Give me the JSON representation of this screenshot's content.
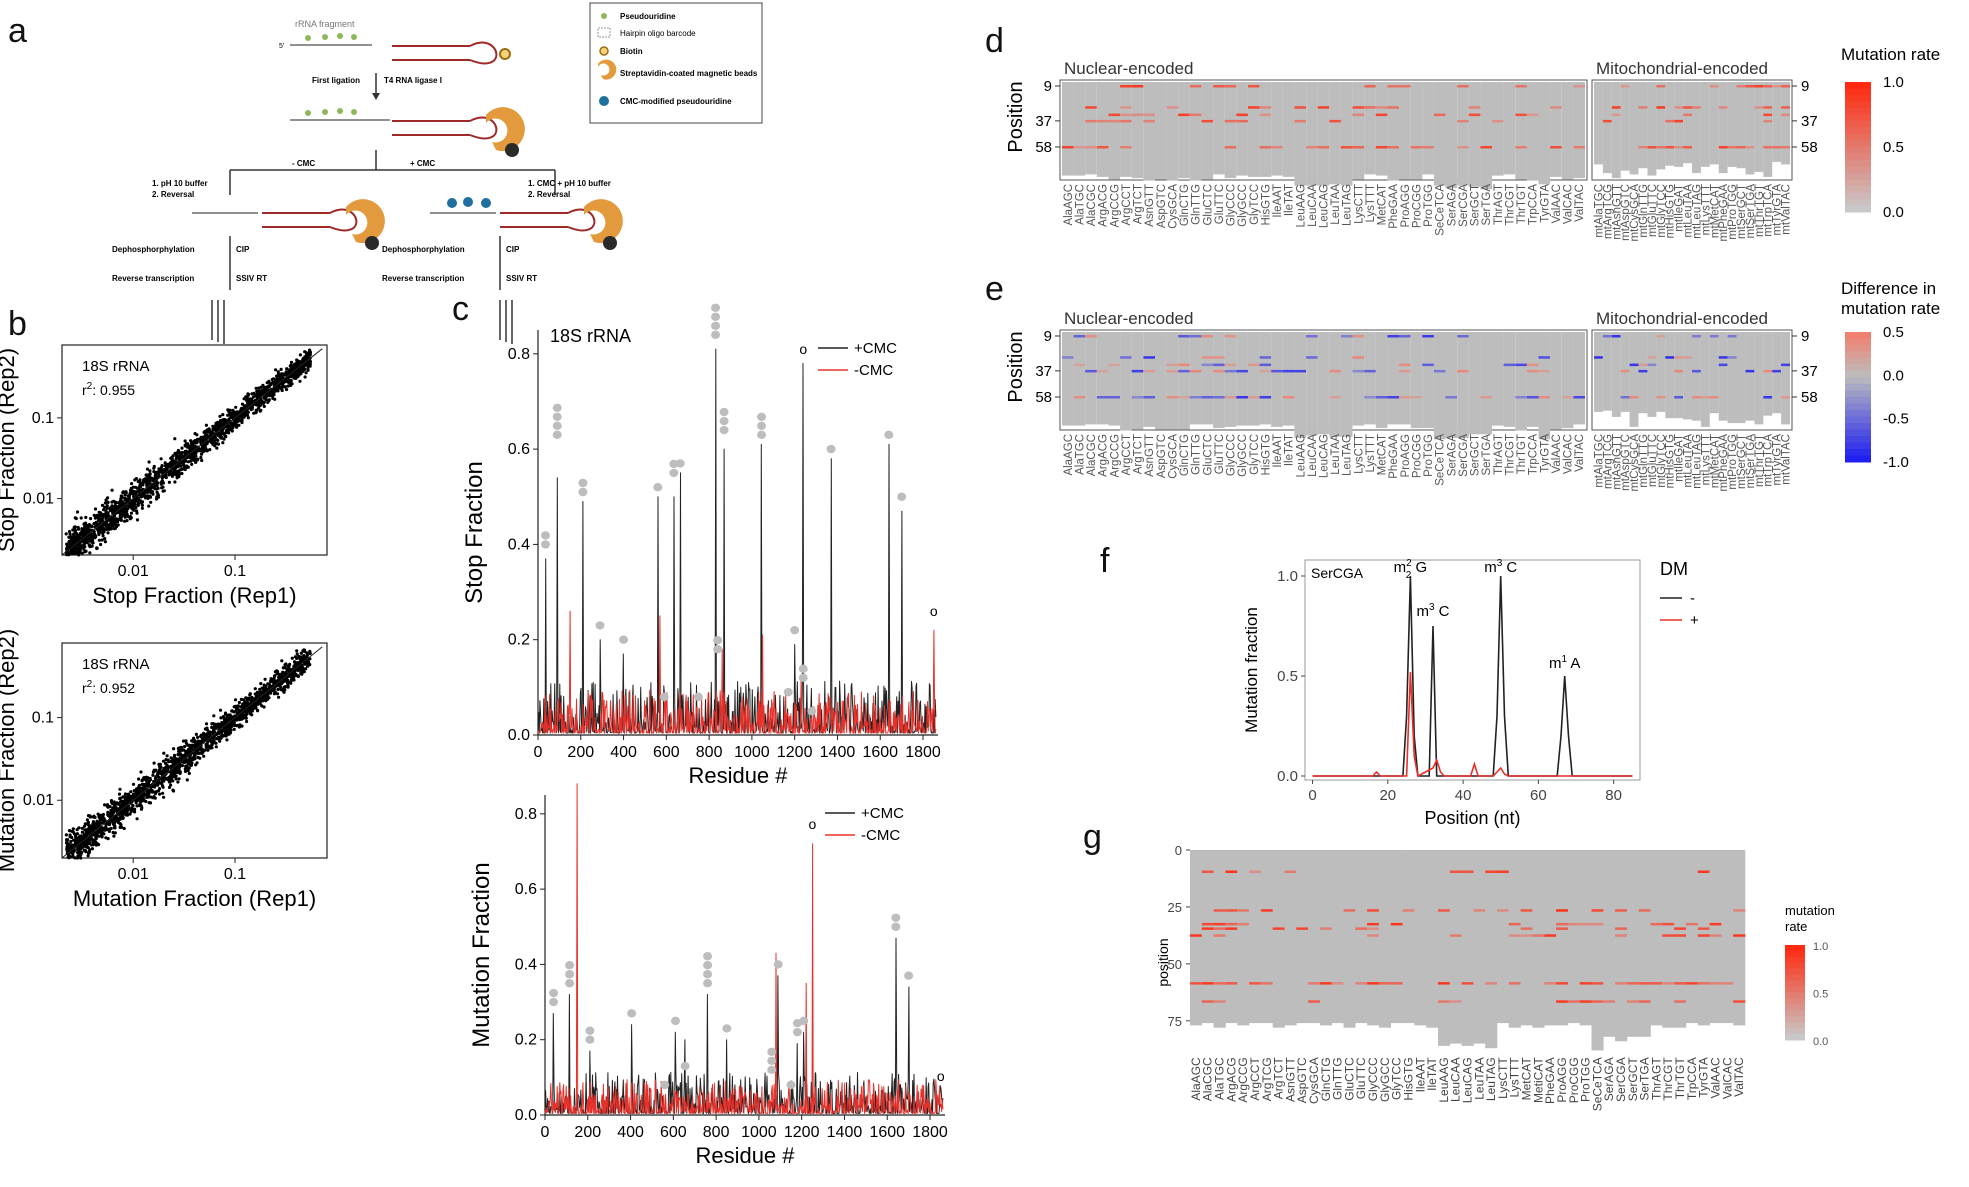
{
  "panel_letters": [
    "a",
    "b",
    "c",
    "d",
    "e",
    "f",
    "g"
  ],
  "colors": {
    "plus_cmc": "#222222",
    "minus_cmc": "#e8302a",
    "grey_bg": "#bdbdbd",
    "low": "#c8c8c8",
    "high": "#ff2a10",
    "diff_pos": "#f08070",
    "diff_neg": "#2020f0"
  },
  "schematic": {
    "rrna_fragment": "rRNA fragment",
    "legend": [
      "Pseudouridine",
      "Hairpin oligo barcode",
      "Biotin",
      "Streptavidin-coated magnetic beads",
      "CMC-modified pseudouridine"
    ],
    "first_ligation": "First ligation",
    "ligase": "T4 RNA ligase I",
    "minus_cmc": "- CMC",
    "plus_cmc": "+ CMC",
    "left_step": [
      "1. pH 10 buffer",
      "2. Reversal"
    ],
    "right_step": [
      "1. CMC + pH 10 buffer",
      "2. Reversal"
    ],
    "dephos": "Dephosphorphylation",
    "cip": "CIP",
    "rt": "Reverse transcription",
    "ssiv": "SSIV RT",
    "five": "5'",
    "three": "3'"
  },
  "chart_data": [
    {
      "id": "b_top",
      "type": "scatter",
      "title": "18S rRNA",
      "r2_label": "r",
      "r2_sup": "2",
      "r2_value": ": 0.955",
      "xlabel": "Stop Fraction (Rep1)",
      "ylabel": "Stop Fraction (Rep2)",
      "xscale": "log",
      "yscale": "log",
      "xlim": [
        0.002,
        0.8
      ],
      "ylim": [
        0.002,
        0.8
      ],
      "xticks": [
        "0.01",
        "0.1"
      ],
      "yticks": [
        "0.01",
        "0.1"
      ],
      "n_points": 1800,
      "regression": "y = x"
    },
    {
      "id": "b_bottom",
      "type": "scatter",
      "title": "18S rRNA",
      "r2_label": "r",
      "r2_sup": "2",
      "r2_value": ": 0.952",
      "xlabel": "Mutation Fraction (Rep1)",
      "ylabel": "Mutation Fraction (Rep2)",
      "xscale": "log",
      "yscale": "log",
      "xlim": [
        0.002,
        0.8
      ],
      "ylim": [
        0.002,
        0.8
      ],
      "xticks": [
        "0.01",
        "0.1"
      ],
      "yticks": [
        "0.01",
        "0.1"
      ],
      "n_points": 1800,
      "regression": "y = x"
    },
    {
      "id": "c_top",
      "type": "line",
      "title": "18S rRNA",
      "xlabel": "Residue #",
      "ylabel": "Stop Fraction",
      "xlim": [
        0,
        1870
      ],
      "ylim": [
        0,
        0.85
      ],
      "xticks": [
        "0",
        "200",
        "400",
        "600",
        "800",
        "1000",
        "1200",
        "1400",
        "1600",
        "1800"
      ],
      "yticks": [
        "0.0",
        "0.2",
        "0.4",
        "0.6",
        "0.8"
      ],
      "legend": [
        "+CMC",
        "-CMC"
      ],
      "peaks_plus_cmc": [
        [
          35,
          0.37
        ],
        [
          90,
          0.54
        ],
        [
          210,
          0.49
        ],
        [
          290,
          0.2
        ],
        [
          400,
          0.17
        ],
        [
          560,
          0.5
        ],
        [
          635,
          0.5
        ],
        [
          665,
          0.55
        ],
        [
          830,
          0.81
        ],
        [
          870,
          0.6
        ],
        [
          1045,
          0.61
        ],
        [
          1200,
          0.19
        ],
        [
          1240,
          0.78
        ],
        [
          1370,
          0.58
        ],
        [
          1640,
          0.61
        ],
        [
          1700,
          0.47
        ]
      ],
      "peaks_minus_cmc": [
        [
          150,
          0.26
        ],
        [
          570,
          0.25
        ],
        [
          860,
          0.18
        ],
        [
          1050,
          0.21
        ],
        [
          1230,
          0.12
        ],
        [
          1850,
          0.22
        ]
      ],
      "pseudouridine_markers": [
        [
          35,
          0.4,
          2
        ],
        [
          90,
          0.63,
          4
        ],
        [
          210,
          0.51,
          2
        ],
        [
          290,
          0.23,
          1
        ],
        [
          400,
          0.2,
          1
        ],
        [
          560,
          0.52,
          1
        ],
        [
          635,
          0.55,
          2
        ],
        [
          665,
          0.57,
          1
        ],
        [
          830,
          0.84,
          4
        ],
        [
          870,
          0.64,
          3
        ],
        [
          1045,
          0.63,
          3
        ],
        [
          1200,
          0.22,
          1
        ],
        [
          1370,
          0.6,
          1
        ],
        [
          1640,
          0.63,
          1
        ],
        [
          1700,
          0.5,
          1
        ],
        [
          590,
          0.08,
          1
        ],
        [
          750,
          0.08,
          1
        ],
        [
          840,
          0.18,
          2
        ],
        [
          1170,
          0.09,
          1
        ],
        [
          1240,
          0.12,
          2
        ],
        [
          1280,
          0.05,
          1
        ]
      ],
      "o_markers": [
        [
          1240,
          0.8
        ],
        [
          1850,
          0.25
        ]
      ]
    },
    {
      "id": "c_bottom",
      "type": "line",
      "title": "",
      "xlabel": "Residue #",
      "ylabel": "Mutation Fraction",
      "xlim": [
        0,
        1870
      ],
      "ylim": [
        0,
        0.85
      ],
      "xticks": [
        "0",
        "200",
        "400",
        "600",
        "800",
        "1000",
        "1200",
        "1400",
        "1600",
        "1800"
      ],
      "yticks": [
        "0.0",
        "0.2",
        "0.4",
        "0.6",
        "0.8"
      ],
      "legend": [
        "+CMC",
        "-CMC"
      ],
      "peaks_plus_cmc": [
        [
          40,
          0.27
        ],
        [
          115,
          0.32
        ],
        [
          210,
          0.17
        ],
        [
          405,
          0.24
        ],
        [
          610,
          0.22
        ],
        [
          655,
          0.2
        ],
        [
          760,
          0.32
        ],
        [
          850,
          0.2
        ],
        [
          1090,
          0.37
        ],
        [
          1180,
          0.19
        ],
        [
          1210,
          0.22
        ],
        [
          1640,
          0.47
        ],
        [
          1700,
          0.34
        ],
        [
          1850,
          0.05
        ]
      ],
      "peaks_minus_cmc": [
        [
          150,
          0.88
        ],
        [
          1250,
          0.72
        ],
        [
          1080,
          0.43
        ],
        [
          1220,
          0.35
        ]
      ],
      "pseudouridine_markers": [
        [
          40,
          0.3,
          2
        ],
        [
          115,
          0.35,
          3
        ],
        [
          210,
          0.2,
          2
        ],
        [
          405,
          0.27,
          1
        ],
        [
          610,
          0.25,
          1
        ],
        [
          655,
          0.13,
          1
        ],
        [
          760,
          0.35,
          4
        ],
        [
          850,
          0.23,
          1
        ],
        [
          1090,
          0.4,
          1
        ],
        [
          1180,
          0.22,
          2
        ],
        [
          1210,
          0.25,
          1
        ],
        [
          1640,
          0.5,
          2
        ],
        [
          1700,
          0.37,
          1
        ],
        [
          560,
          0.08,
          1
        ],
        [
          1060,
          0.12,
          3
        ],
        [
          1150,
          0.08,
          1
        ]
      ],
      "o_markers": [
        [
          1250,
          0.76
        ],
        [
          1850,
          0.09
        ]
      ]
    },
    {
      "id": "f",
      "type": "line",
      "title": "SerCGA",
      "xlabel": "Position (nt)",
      "ylabel": "Mutation fraction",
      "xlim": [
        -2,
        87
      ],
      "ylim": [
        -0.02,
        1.08
      ],
      "xticks": [
        "0",
        "20",
        "40",
        "60",
        "80"
      ],
      "yticks": [
        "0.0",
        "0.5",
        "1.0"
      ],
      "legend_title": "DM",
      "legend": [
        "-",
        "+"
      ],
      "series": [
        {
          "name": "-",
          "x": [
            0,
            24,
            25,
            26,
            27,
            28,
            31,
            32,
            33,
            48,
            49,
            50,
            51,
            52,
            65,
            66,
            67,
            68,
            69,
            85
          ],
          "y": [
            0,
            0,
            0.3,
            1.0,
            0.2,
            0,
            0,
            0.75,
            0,
            0,
            0.3,
            1.0,
            0.3,
            0,
            0,
            0.2,
            0.5,
            0.2,
            0,
            0
          ]
        },
        {
          "name": "+",
          "x": [
            0,
            16,
            17,
            18,
            25,
            26,
            27,
            28,
            32,
            33,
            34,
            35,
            42,
            43,
            44,
            48,
            49,
            50,
            51,
            52,
            67,
            85
          ],
          "y": [
            0,
            0,
            0.02,
            0,
            0,
            0.52,
            0.1,
            0,
            0.04,
            0.08,
            0.02,
            0,
            0,
            0.06,
            0,
            0,
            0.02,
            0.04,
            0.01,
            0,
            0,
            0
          ]
        }
      ],
      "annotations": [
        {
          "pre": "m",
          "sup": "2",
          "sub": "2",
          "post": " G",
          "x": 26,
          "y": 1.02
        },
        {
          "pre": "m",
          "sup": "3",
          "sub": "",
          "post": " C",
          "x": 32,
          "y": 0.8
        },
        {
          "pre": "m",
          "sup": "3",
          "sub": "",
          "post": " C",
          "x": 50,
          "y": 1.02
        },
        {
          "pre": "m",
          "sup": "1",
          "sub": "",
          "post": " A",
          "x": 67,
          "y": 0.54
        }
      ]
    },
    {
      "id": "d",
      "type": "heatmap",
      "nuclear_label": "Nuclear-encoded",
      "mito_label": "Mitochondrial-encoded",
      "ylabel": "Position",
      "yticks": [
        "9",
        "37",
        "58"
      ],
      "legend_title": "Mutation rate",
      "legend_ticks": [
        "1.0",
        "0.5",
        "0.0"
      ],
      "nuclear_columns": [
        "AlaAGC",
        "AlaTGC",
        "AlaCGC",
        "ArgACG",
        "ArgCCG",
        "ArgCCT",
        "ArgTCT",
        "AsnGTT",
        "AspGTC",
        "CysGCA",
        "GlnCTG",
        "GlnTTG",
        "GluCTC",
        "GluTTC",
        "GlyCCC",
        "GlyGCC",
        "GlyTCC",
        "HisGTG",
        "IleAAT",
        "IleTAT",
        "LeuAAG",
        "LeuCAA",
        "LeuCAG",
        "LeuTAA",
        "LeuTAG",
        "LysCTT",
        "LysTTT",
        "MetCAT",
        "PheGAA",
        "ProAGG",
        "ProCGG",
        "ProTGG",
        "SeCeTCA",
        "SerAGA",
        "SerCGA",
        "SerGCT",
        "SerTGA",
        "ThrAGT",
        "ThrCGT",
        "ThrTGT",
        "TrpCCA",
        "TyrGTA",
        "ValAAC",
        "ValCAC",
        "ValTAC"
      ],
      "mito_columns": [
        "mtAlaTGC",
        "mtArgTCG",
        "mtAsnGTT",
        "mtAspGTC",
        "mtCysGCA",
        "mtGlnTTG",
        "mtGluTTC",
        "mtGlyTCC",
        "mtHisGTG",
        "mtIleGAT",
        "mtLeuTAA",
        "mtLeuTAG",
        "mtLysTTT",
        "mtMetCAT",
        "mtPheGAA",
        "mtProTGG",
        "mtSerGCT",
        "mtSerTGA",
        "mtThrTGT",
        "mtTrpTCA",
        "mtTyrGTA",
        "mtValTAC"
      ]
    },
    {
      "id": "e",
      "type": "heatmap",
      "nuclear_label": "Nuclear-encoded",
      "mito_label": "Mitochondrial-encoded",
      "ylabel": "Position",
      "yticks": [
        "9",
        "37",
        "58"
      ],
      "legend_title": [
        "Difference in",
        "mutation rate"
      ],
      "legend_ticks": [
        "0.5",
        "0.0",
        "-0.5",
        "-1.0"
      ],
      "nuclear_columns": [
        "AlaAGC",
        "AlaTGC",
        "AlaCGC",
        "ArgACG",
        "ArgCCG",
        "ArgCCT",
        "ArgTCT",
        "AsnGTT",
        "AspGTC",
        "CysGCA",
        "GlnCTG",
        "GlnTTG",
        "GluCTC",
        "GluTTC",
        "GlyCCC",
        "GlyGCC",
        "GlyTCC",
        "HisGTG",
        "IleAAT",
        "IleTAT",
        "LeuAAG",
        "LeuCAA",
        "LeuCAG",
        "LeuTAA",
        "LeuTAG",
        "LysCTT",
        "LysTTT",
        "MetCAT",
        "PheGAA",
        "ProAGG",
        "ProCGG",
        "ProTGG",
        "SeCeTCA",
        "SerAGA",
        "SerCGA",
        "SerGCT",
        "SerTGA",
        "ThrAGT",
        "ThrCGT",
        "ThrTGT",
        "TrpCCA",
        "TyrGTA",
        "ValAAC",
        "ValCAC",
        "ValTAC"
      ],
      "mito_columns": [
        "mtAlaTGC",
        "mtArgTCG",
        "mtAsnGTT",
        "mtAspGTC",
        "mtCysGCA",
        "mtGlnTTG",
        "mtGluTTC",
        "mtGlyTCC",
        "mtHisGTG",
        "mtIleGAT",
        "mtLeuTAA",
        "mtLeuTAG",
        "mtLysTTT",
        "mtMetCAT",
        "mtPheGAA",
        "mtProTGG",
        "mtSerGCT",
        "mtSerTGA",
        "mtThrTGT",
        "mtTrpTCA",
        "mtTyrGTA",
        "mtValTAC"
      ]
    },
    {
      "id": "g",
      "type": "heatmap",
      "ylabel": "position",
      "yticks": [
        "0",
        "25",
        "50",
        "75"
      ],
      "legend_title": [
        "mutation",
        "rate"
      ],
      "legend_ticks": [
        "1.0",
        "0.5",
        "0.0"
      ],
      "columns": [
        "AlaAGC",
        "AlaCGC",
        "AlaTGC",
        "ArgACG",
        "ArgCCG",
        "ArgCCT",
        "ArgTCG",
        "ArgTCT",
        "AsnGTT",
        "AspGTC",
        "CysGCA",
        "GlnCTG",
        "GlnTTG",
        "GluCTC",
        "GluTTC",
        "GlyCCC",
        "GlyGCC",
        "GlyTCC",
        "HisGTG",
        "IleAAT",
        "IleTAT",
        "LeuAAG",
        "LeuCAA",
        "LeuCAG",
        "LeuTAA",
        "LeuTAG",
        "LysCTT",
        "LysTTT",
        "MetCAT",
        "MetiCAT",
        "PheGAA",
        "ProAGG",
        "ProCGG",
        "ProTGG",
        "SeCeTCA",
        "SerAGA",
        "SerCGA",
        "SerGCT",
        "SerTGA",
        "ThrAGT",
        "ThrCGT",
        "ThrTGT",
        "TrpCCA",
        "TyrGTA",
        "ValAAC",
        "ValCAC",
        "ValTAC"
      ]
    }
  ]
}
